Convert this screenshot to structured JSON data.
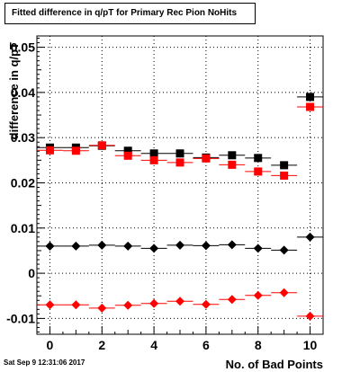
{
  "chart_data": {
    "type": "scatter",
    "title": "Fitted difference in q/pT for Primary Rec Pion NoHits",
    "xlabel": "No. of Bad Points",
    "ylabel": "difference in q/pT",
    "xlim": [
      -0.5,
      10.5
    ],
    "ylim": [
      -0.0135,
      0.0525
    ],
    "x_ticks": [
      0,
      2,
      4,
      6,
      8,
      10
    ],
    "y_ticks": [
      -0.01,
      0,
      0.01,
      0.02,
      0.03,
      0.04,
      0.05
    ],
    "y_tick_labels": [
      "-0.01",
      "0",
      "0.01",
      "0.02",
      "0.03",
      "0.04",
      "0.05"
    ],
    "x_tick_labels": [
      "0",
      "2",
      "4",
      "6",
      "8",
      "10"
    ],
    "grid": true,
    "series": [
      {
        "marker": "square",
        "color": "#000000",
        "x": [
          0,
          1,
          2,
          3,
          4,
          5,
          6,
          7,
          8,
          9,
          10
        ],
        "values": [
          0.0278,
          0.0278,
          0.0282,
          0.0271,
          0.0265,
          0.0265,
          0.0256,
          0.0261,
          0.0255,
          0.0239,
          0.039
        ]
      },
      {
        "marker": "square",
        "color": "#ff0000",
        "x": [
          0,
          1,
          2,
          3,
          4,
          5,
          6,
          7,
          8,
          9,
          10
        ],
        "values": [
          0.0272,
          0.0271,
          0.0283,
          0.026,
          0.025,
          0.0245,
          0.0254,
          0.024,
          0.0225,
          0.0216,
          0.0368
        ]
      },
      {
        "marker": "diamond",
        "color": "#000000",
        "x": [
          0,
          1,
          2,
          3,
          4,
          5,
          6,
          7,
          8,
          9,
          10
        ],
        "values": [
          0.006,
          0.006,
          0.0062,
          0.006,
          0.0055,
          0.0062,
          0.0061,
          0.0063,
          0.0055,
          0.0051,
          0.008
        ]
      },
      {
        "marker": "diamond",
        "color": "#ff0000",
        "x": [
          0,
          1,
          2,
          3,
          4,
          5,
          6,
          7,
          8,
          9,
          10
        ],
        "values": [
          -0.007,
          -0.007,
          -0.0077,
          -0.0071,
          -0.0067,
          -0.0062,
          -0.0069,
          -0.0058,
          -0.0049,
          -0.0043,
          -0.0095
        ]
      }
    ]
  },
  "timestamp": "Sat Sep  9 12:31:06 2017"
}
